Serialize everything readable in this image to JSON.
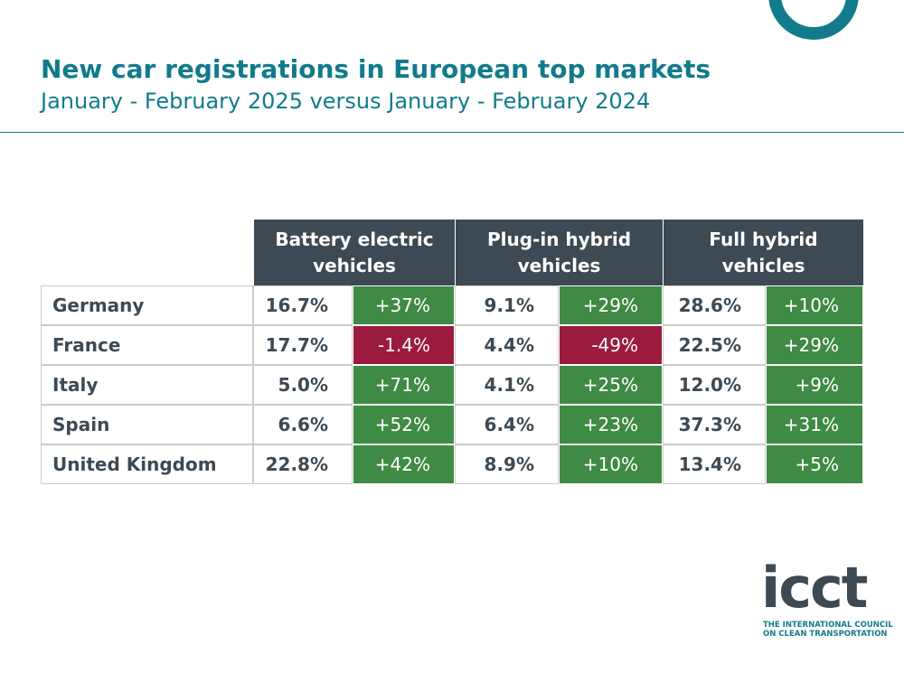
{
  "header": {
    "title": "New car registrations in European top markets",
    "subtitle": "January - February 2025 versus January - February 2024"
  },
  "table": {
    "columns": [
      "Battery electric vehicles",
      "Plug-in hybrid vehicles",
      "Full hybrid vehicles"
    ],
    "rows": [
      {
        "country": "Germany",
        "cells": [
          "16.7%",
          "+37%",
          "9.1%",
          "+29%",
          "28.6%",
          "+10%"
        ]
      },
      {
        "country": "France",
        "cells": [
          "17.7%",
          "-1.4%",
          "4.4%",
          "-49%",
          "22.5%",
          "+29%"
        ]
      },
      {
        "country": "Italy",
        "cells": [
          "5.0%",
          "+71%",
          "4.1%",
          "+25%",
          "12.0%",
          "+9%"
        ]
      },
      {
        "country": "Spain",
        "cells": [
          "6.6%",
          "+52%",
          "6.4%",
          "+23%",
          "37.3%",
          "+31%"
        ]
      },
      {
        "country": "United Kingdom",
        "cells": [
          "22.8%",
          "+42%",
          "8.9%",
          "+10%",
          "13.4%",
          "+5%"
        ]
      }
    ]
  },
  "logo": {
    "mark": "icct",
    "tagline": [
      "THE INTERNATIONAL COUNCIL",
      "ON CLEAN TRANSPORTATION"
    ]
  }
}
